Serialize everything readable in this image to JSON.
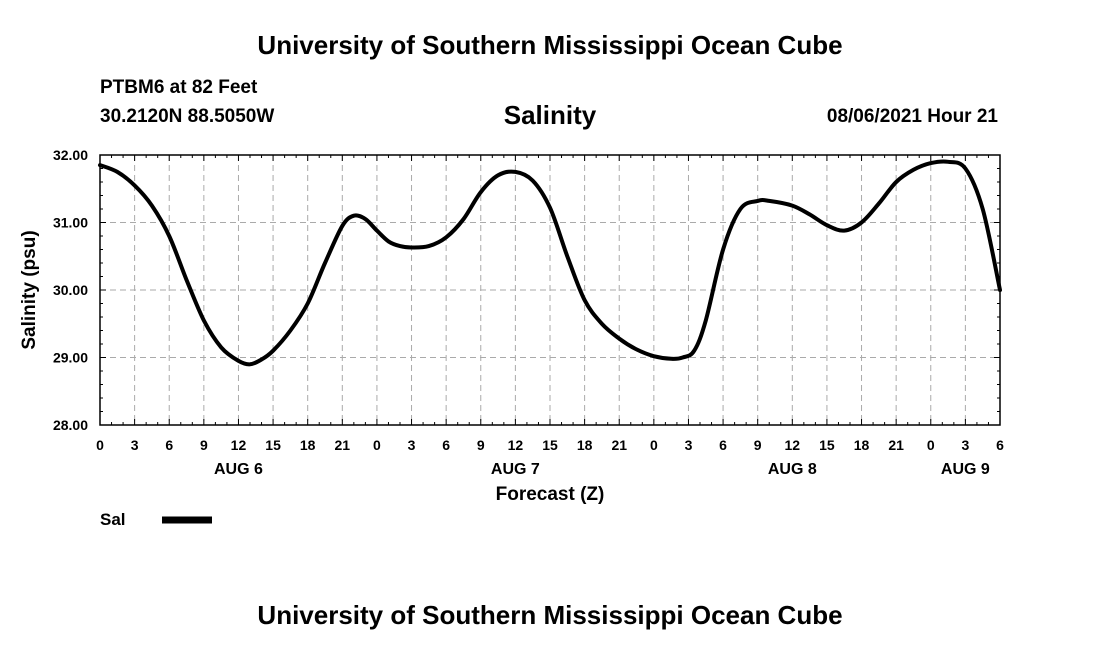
{
  "header": {
    "title": "University of Southern Mississippi Ocean Cube",
    "station": "PTBM6 at 82 Feet",
    "coords": "30.2120N  88.5050W",
    "variable": "Salinity",
    "datetime": "08/06/2021 Hour 21"
  },
  "footer": {
    "title": "University of Southern Mississippi Ocean Cube"
  },
  "legend": {
    "label": "Sal"
  },
  "colors": {
    "line": "#000000",
    "grid": "#aaaaaa",
    "background": "#ffffff"
  },
  "chart_data": {
    "type": "line",
    "title": "Salinity",
    "xlabel": "Forecast (Z)",
    "ylabel": "Salinity (psu)",
    "xlim": [
      0,
      78
    ],
    "ylim": [
      28,
      32
    ],
    "yticks": [
      "28.00",
      "29.00",
      "30.00",
      "31.00",
      "32.00"
    ],
    "xticks": [
      "0",
      "3",
      "6",
      "9",
      "12",
      "15",
      "18",
      "21",
      "0",
      "3",
      "6",
      "9",
      "12",
      "15",
      "18",
      "21",
      "0",
      "3",
      "6",
      "9",
      "12",
      "15",
      "18",
      "21",
      "0",
      "3",
      "6"
    ],
    "day_labels": [
      {
        "label": "AUG 6",
        "hour": 12
      },
      {
        "label": "AUG 7",
        "hour": 36
      },
      {
        "label": "AUG 8",
        "hour": 60
      },
      {
        "label": "AUG 9",
        "hour": 75
      }
    ],
    "grid": true,
    "legend_position": "bottom-left",
    "series": [
      {
        "name": "Sal",
        "x": [
          0,
          1.5,
          3,
          4.5,
          6,
          7.5,
          9,
          10.5,
          12,
          13,
          14,
          15,
          16.5,
          18,
          19.5,
          21,
          22,
          23,
          24,
          25,
          26,
          27,
          28.5,
          30,
          31.5,
          33,
          34.5,
          36,
          37.5,
          39,
          40.5,
          42,
          43.5,
          45,
          46.5,
          48,
          49.5,
          50.5,
          51.5,
          52.5,
          54,
          55.5,
          57,
          58,
          60,
          61.5,
          63,
          64.5,
          66,
          67.5,
          69,
          70.5,
          72,
          73.5,
          75,
          76.5,
          78
        ],
        "values": [
          31.85,
          31.75,
          31.55,
          31.25,
          30.8,
          30.15,
          29.55,
          29.15,
          28.95,
          28.9,
          28.97,
          29.1,
          29.4,
          29.8,
          30.4,
          30.95,
          31.1,
          31.05,
          30.88,
          30.72,
          30.65,
          30.63,
          30.65,
          30.78,
          31.05,
          31.45,
          31.7,
          31.75,
          31.62,
          31.22,
          30.5,
          29.85,
          29.5,
          29.28,
          29.12,
          29.02,
          28.98,
          29.0,
          29.1,
          29.55,
          30.6,
          31.2,
          31.32,
          31.32,
          31.25,
          31.12,
          30.96,
          30.88,
          31.0,
          31.28,
          31.6,
          31.78,
          31.88,
          31.9,
          31.8,
          31.2,
          30.0
        ]
      }
    ]
  }
}
